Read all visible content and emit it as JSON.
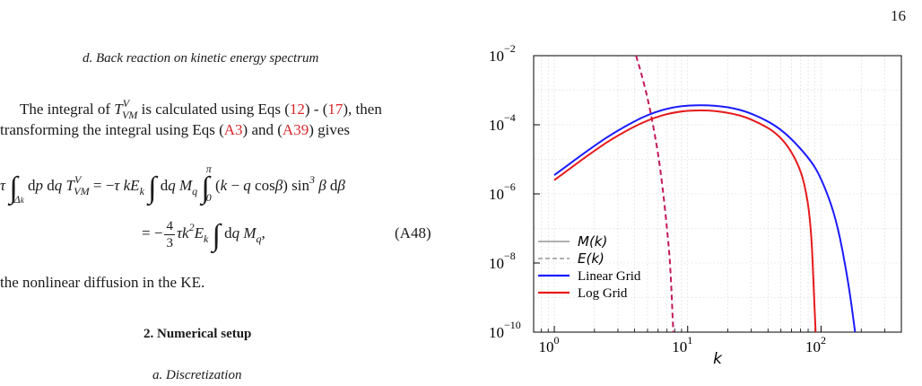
{
  "page_number": "16",
  "left_column": {
    "subsection_title": "d.   Back reaction on kinetic energy spectrum",
    "para_line1_a": "The integral of ",
    "para_line1_b": " is calculated using Eqs (",
    "ref_12": "12",
    "para_line1_c": ") - (",
    "ref_17": "17",
    "para_line1_d": "), then",
    "para_line2_a": "transforming the integral using Eqs (",
    "ref_A3": "A3",
    "para_line2_b": ") and (",
    "ref_A39": "A39",
    "para_line2_c": ") gives",
    "equation_number": "(A48)",
    "text_after": "the nonlinear diffusion in the KE.",
    "section_title": "2.   Numerical setup",
    "subsection2_title": "a.   Discretization"
  },
  "chart_data": {
    "type": "line",
    "xlabel": "k",
    "ylabel": "",
    "xscale": "log",
    "yscale": "log",
    "xlim": [
      0.7,
      400
    ],
    "ylim": [
      1e-10,
      0.01
    ],
    "x_ticks": [
      {
        "base": "10",
        "exp": "0"
      },
      {
        "base": "10",
        "exp": "1"
      },
      {
        "base": "10",
        "exp": "2"
      }
    ],
    "y_ticks": [
      {
        "base": "10",
        "exp": "−10"
      },
      {
        "base": "10",
        "exp": "−8"
      },
      {
        "base": "10",
        "exp": "−6"
      },
      {
        "base": "10",
        "exp": "−4"
      },
      {
        "base": "10",
        "exp": "−2"
      }
    ],
    "grid": true,
    "legend_position": "bottom-left",
    "series": [
      {
        "name": "M(k)",
        "color": "#808080",
        "style": "solid",
        "points": []
      },
      {
        "name": "E(k)",
        "color": "#c2185b",
        "style": "dashed",
        "points": [
          [
            4.1,
            0.01
          ],
          [
            4.5,
            0.003
          ],
          [
            5.0,
            0.0006
          ],
          [
            5.5,
            0.0001
          ],
          [
            6.0,
            1.5e-05
          ],
          [
            6.5,
            1.5e-06
          ],
          [
            7.0,
            1e-07
          ],
          [
            7.4,
            1e-08
          ],
          [
            7.8,
            1e-10
          ]
        ]
      },
      {
        "name": "Linear Grid",
        "color": "#1a1aff",
        "style": "solid",
        "points": [
          [
            1,
            3.5e-06
          ],
          [
            2,
            2.5e-05
          ],
          [
            3,
            7e-05
          ],
          [
            5,
            0.0002
          ],
          [
            8,
            0.00034
          ],
          [
            13,
            0.00038
          ],
          [
            20,
            0.00033
          ],
          [
            30,
            0.00022
          ],
          [
            50,
            8e-05
          ],
          [
            80,
            1.2e-05
          ],
          [
            100,
            3e-06
          ],
          [
            130,
            2e-07
          ],
          [
            160,
            3e-09
          ],
          [
            180,
            1e-10
          ]
        ]
      },
      {
        "name": "Log Grid",
        "color": "#e8191a",
        "style": "solid",
        "points": [
          [
            1,
            2.5e-06
          ],
          [
            2,
            1.8e-05
          ],
          [
            3,
            5e-05
          ],
          [
            5,
            0.00014
          ],
          [
            8,
            0.00024
          ],
          [
            13,
            0.00027
          ],
          [
            20,
            0.00023
          ],
          [
            30,
            0.00015
          ],
          [
            50,
            5e-05
          ],
          [
            70,
            6e-06
          ],
          [
            80,
            6e-07
          ],
          [
            85,
            5e-08
          ],
          [
            88,
            2e-09
          ],
          [
            91,
            1e-10
          ]
        ]
      }
    ]
  }
}
